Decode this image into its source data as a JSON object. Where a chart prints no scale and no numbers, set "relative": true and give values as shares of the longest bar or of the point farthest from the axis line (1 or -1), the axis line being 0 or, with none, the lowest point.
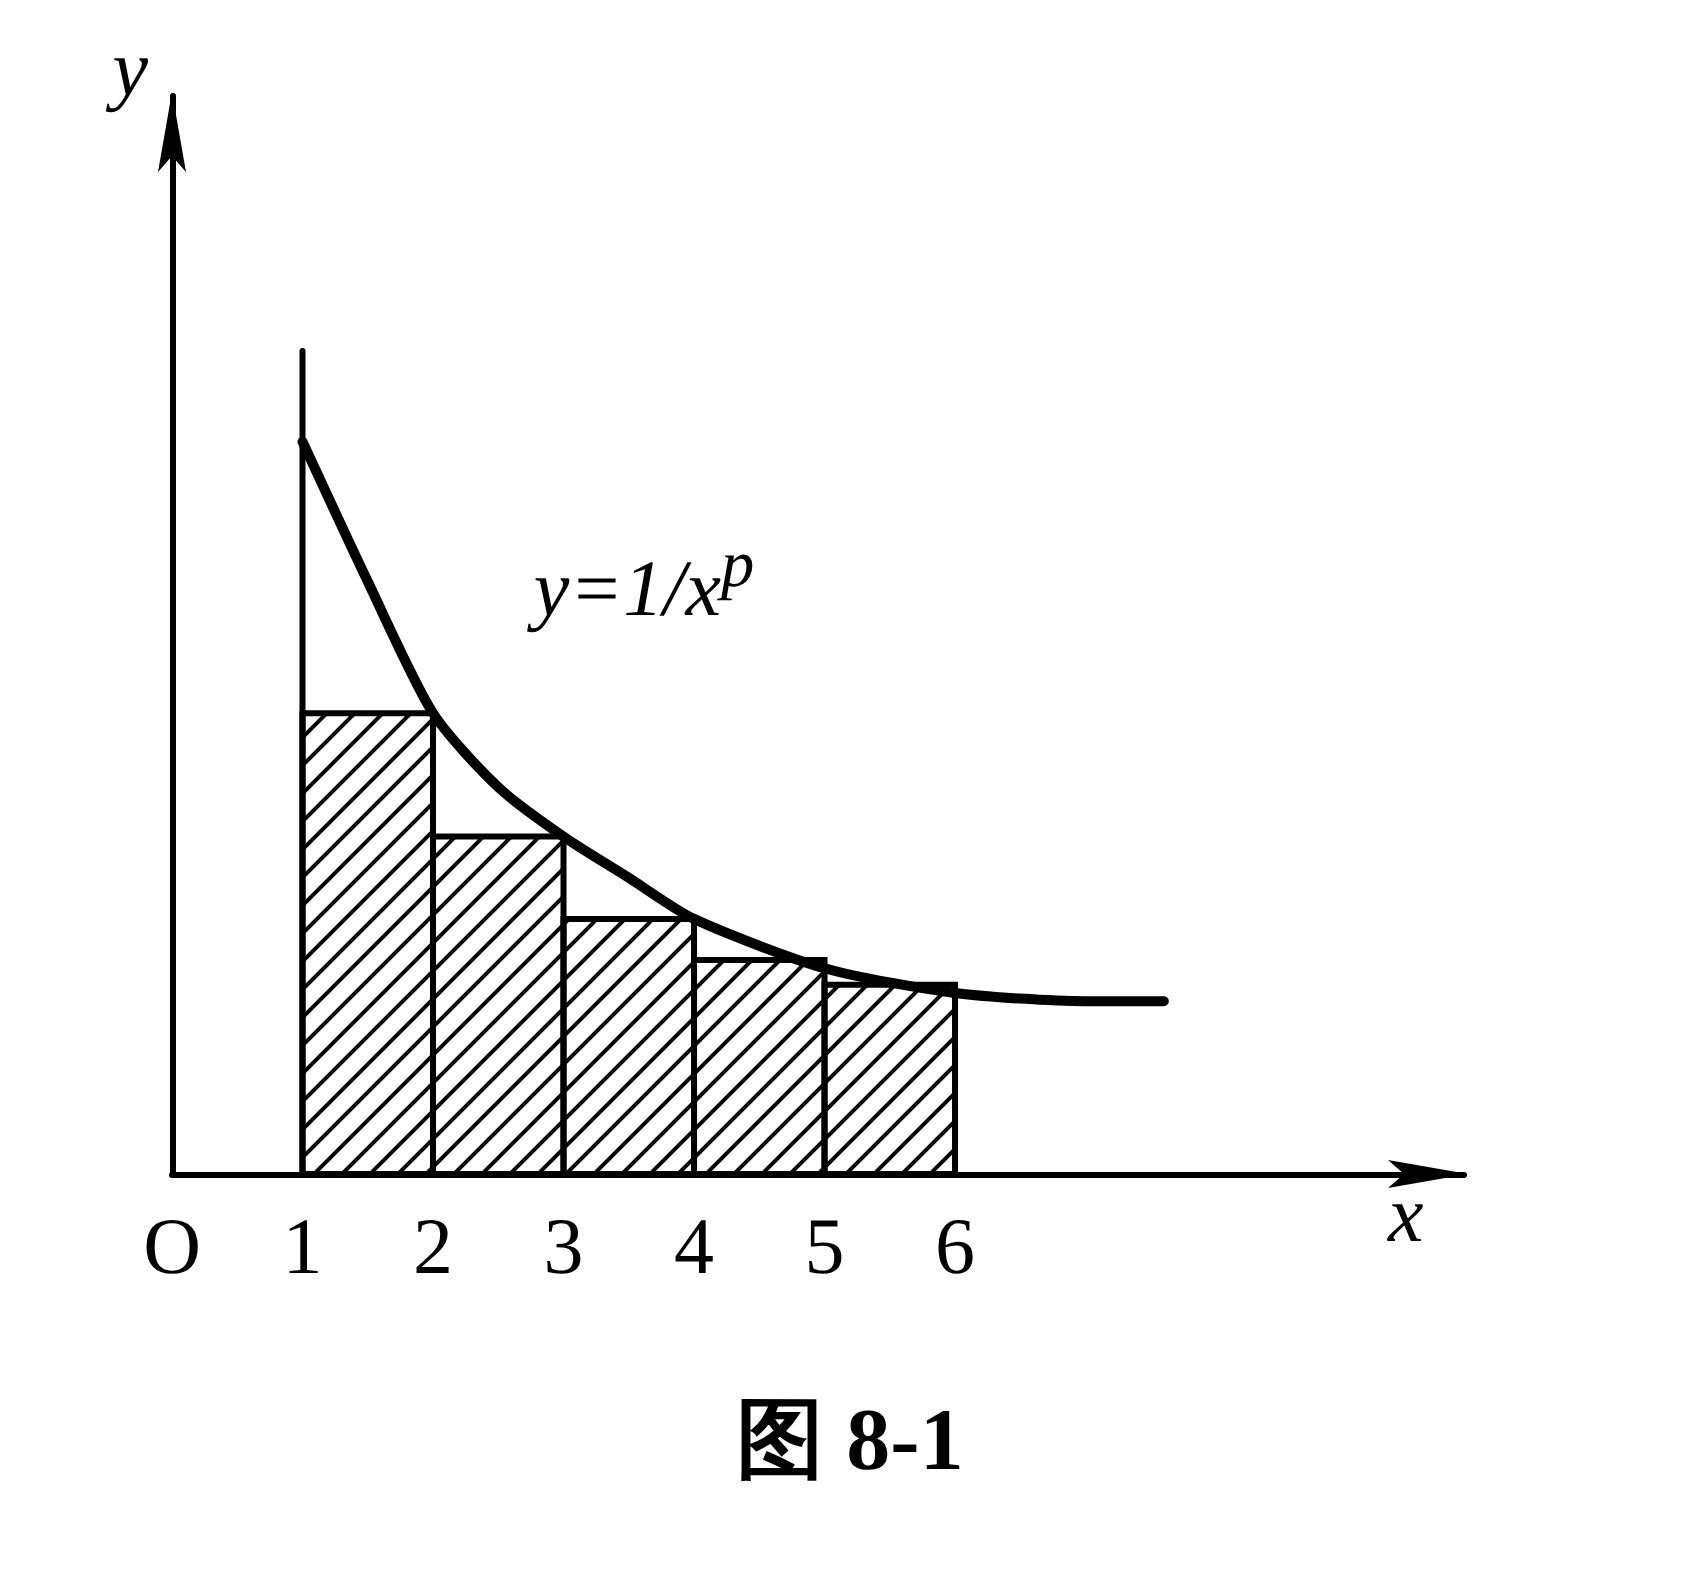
{
  "chart_data": {
    "type": "histogram",
    "relative": true,
    "bins": [
      1,
      2,
      3,
      4,
      5,
      6
    ],
    "values": [
      0.56,
      0.41,
      0.31,
      0.26,
      0.23
    ],
    "color": "#000000",
    "series": [
      {
        "type": "line",
        "x": [
          1,
          1
        ],
        "values": [
          0,
          1
        ],
        "color": "#000000"
      },
      {
        "type": "line",
        "name": "y=1/x$^{p}$",
        "x": [
          1,
          1.5,
          2,
          2.5,
          3,
          3.5,
          4,
          5,
          6,
          7,
          7.6
        ],
        "values": [
          0.89,
          0.72,
          0.56,
          0.47,
          0.41,
          0.36,
          0.31,
          0.25,
          0.22,
          0.21,
          0.21
        ],
        "color": "#000000"
      }
    ],
    "xlim": [
      0,
      9.9
    ],
    "xticks": [
      {
        "value": 0,
        "label": "O"
      },
      1,
      2,
      3,
      4,
      5,
      6
    ],
    "xlabel": "x",
    "ylabel": "y",
    "tick_labels": "x",
    "grid": false,
    "legend": false,
    "marker": "none",
    "annotations": [
      "图 8-1"
    ]
  }
}
